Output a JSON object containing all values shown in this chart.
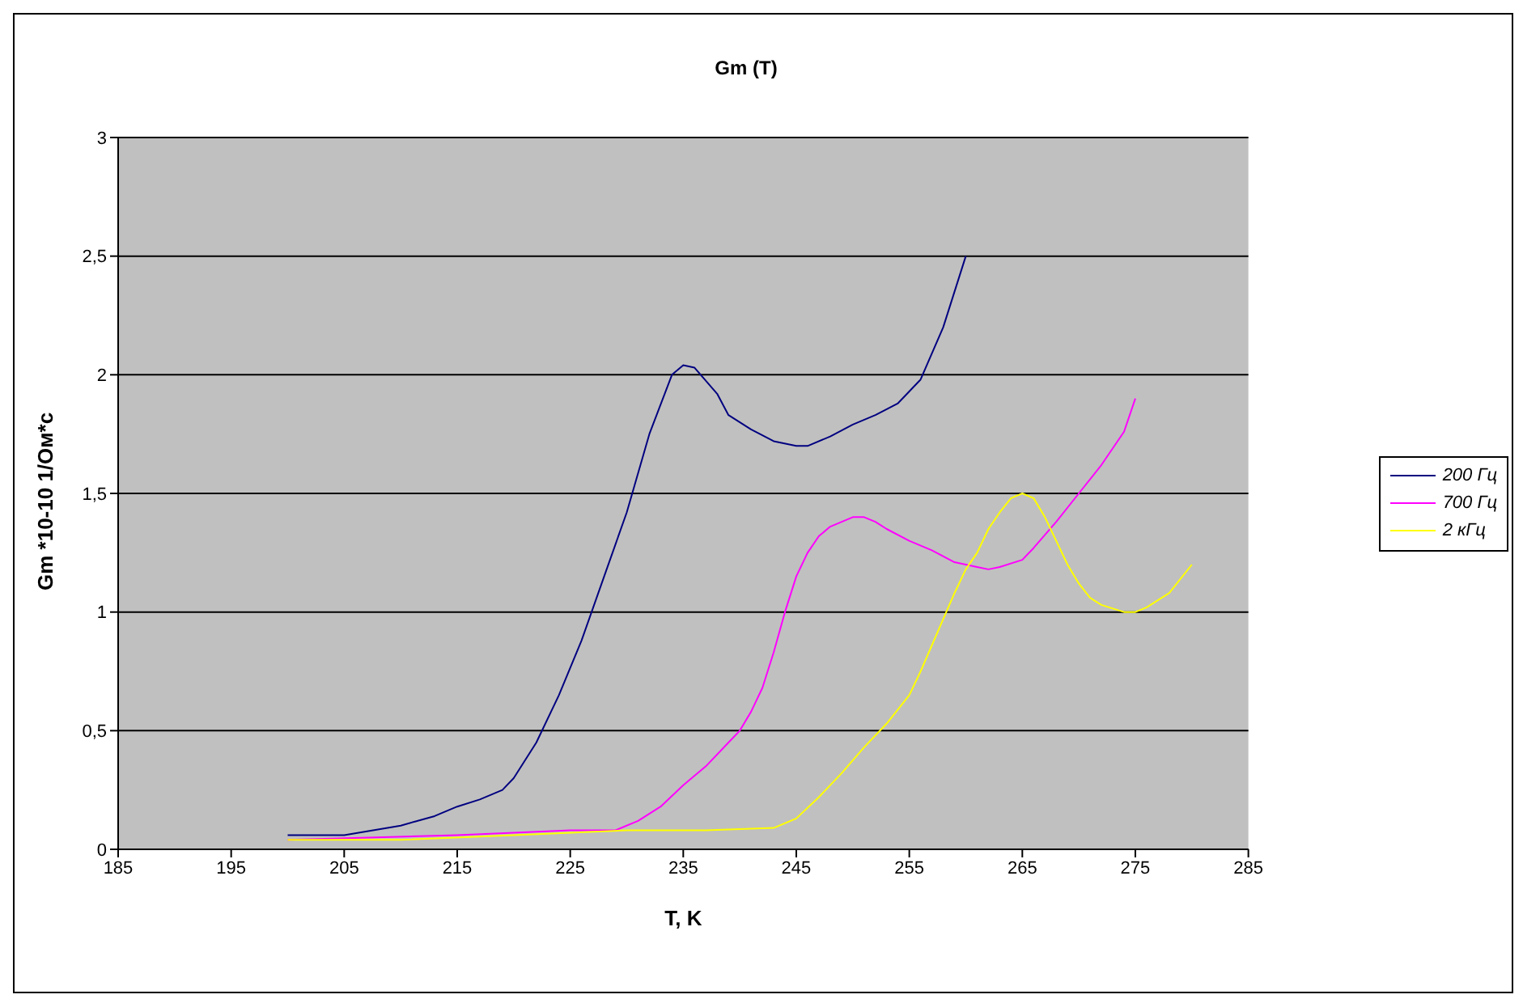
{
  "chart_data": {
    "type": "line",
    "title": "Gm (T)",
    "xlabel": "T, K",
    "ylabel": "Gm *10-10 1/Ом*с",
    "xlim": [
      185,
      285
    ],
    "xticks": [
      185,
      195,
      205,
      215,
      225,
      235,
      245,
      255,
      265,
      275,
      285
    ],
    "ylim": [
      0,
      3
    ],
    "yticks": [
      0,
      {
        "value": 0.5,
        "label": "0,5"
      },
      1,
      {
        "value": 1.5,
        "label": "1,5"
      },
      2,
      {
        "value": 2.5,
        "label": "2,5"
      },
      3
    ],
    "grid": "y",
    "legend": "right",
    "marker": "none",
    "line_style": "solid",
    "series": [
      {
        "name": "200 Гц",
        "color": "#000080",
        "x": [
          200,
          205,
          210,
          213,
          215,
          217,
          219,
          220,
          222,
          224,
          226,
          228,
          230,
          232,
          234,
          235,
          236,
          238,
          239,
          241,
          243,
          245,
          246,
          248,
          250,
          252,
          254,
          256,
          258,
          260
        ],
        "values": [
          0.06,
          0.06,
          0.1,
          0.14,
          0.18,
          0.21,
          0.25,
          0.3,
          0.45,
          0.65,
          0.88,
          1.15,
          1.42,
          1.75,
          2.0,
          2.04,
          2.03,
          1.92,
          1.83,
          1.77,
          1.72,
          1.7,
          1.7,
          1.74,
          1.79,
          1.83,
          1.88,
          1.98,
          2.2,
          2.5
        ]
      },
      {
        "name": "700 Гц",
        "color": "#ff00ff",
        "x": [
          200,
          215,
          225,
          229,
          231,
          233,
          235,
          237,
          239,
          240,
          241,
          242,
          243,
          244,
          245,
          246,
          247,
          248,
          250,
          251,
          252,
          253,
          255,
          257,
          259,
          261,
          262,
          263,
          265,
          266,
          268,
          270,
          272,
          274,
          275
        ],
        "values": [
          0.04,
          0.06,
          0.08,
          0.08,
          0.12,
          0.18,
          0.27,
          0.35,
          0.45,
          0.5,
          0.58,
          0.68,
          0.83,
          1.0,
          1.15,
          1.25,
          1.32,
          1.36,
          1.4,
          1.4,
          1.38,
          1.35,
          1.3,
          1.26,
          1.21,
          1.19,
          1.18,
          1.19,
          1.22,
          1.27,
          1.38,
          1.5,
          1.62,
          1.76,
          1.9
        ]
      },
      {
        "name": "2 кГц",
        "color": "#ffff00",
        "x": [
          200,
          210,
          220,
          230,
          237,
          240,
          243,
          245,
          247,
          249,
          251,
          253,
          255,
          256,
          258,
          259,
          260,
          261,
          262,
          263,
          264,
          265,
          266,
          267,
          268,
          269,
          270,
          271,
          272,
          274,
          275,
          276,
          278,
          280
        ],
        "values": [
          0.04,
          0.04,
          0.06,
          0.08,
          0.08,
          0.085,
          0.09,
          0.13,
          0.22,
          0.32,
          0.43,
          0.53,
          0.65,
          0.75,
          0.97,
          1.08,
          1.18,
          1.25,
          1.35,
          1.42,
          1.48,
          1.5,
          1.48,
          1.4,
          1.3,
          1.2,
          1.12,
          1.06,
          1.03,
          1.0,
          1.0,
          1.02,
          1.08,
          1.2
        ]
      }
    ]
  }
}
